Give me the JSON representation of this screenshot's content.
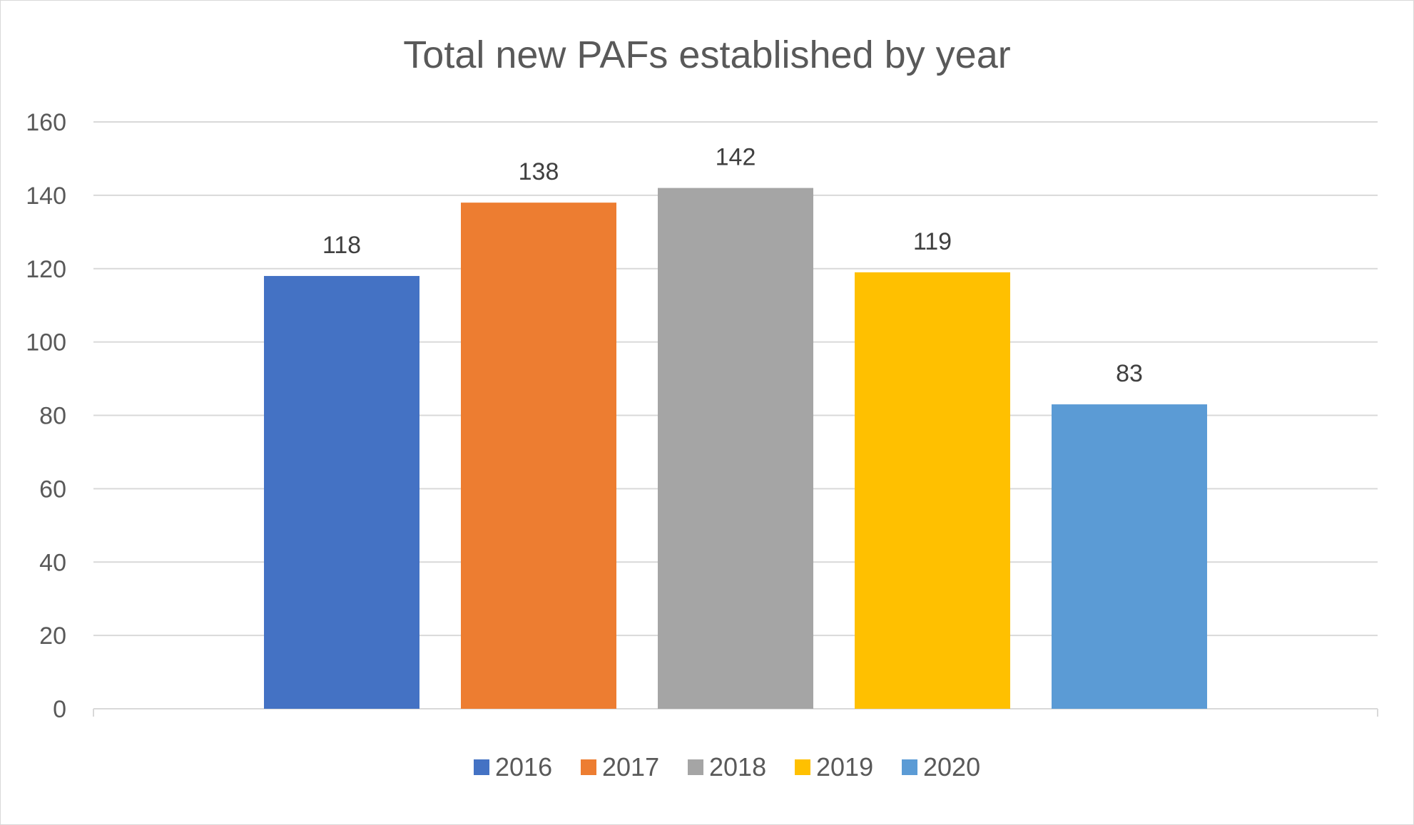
{
  "chart_data": {
    "type": "bar",
    "title": "Total new PAFs established by year",
    "xlabel": "",
    "ylabel": "",
    "ylim": [
      0,
      160
    ],
    "yticks": [
      0,
      20,
      40,
      60,
      80,
      100,
      120,
      140,
      160
    ],
    "grid": true,
    "legend_position": "bottom",
    "categories": [
      "2016",
      "2017",
      "2018",
      "2019",
      "2020"
    ],
    "values": [
      118,
      138,
      142,
      119,
      83
    ],
    "colors": [
      "#4472C4",
      "#ED7D31",
      "#A5A5A5",
      "#FFC000",
      "#5B9BD5"
    ]
  }
}
